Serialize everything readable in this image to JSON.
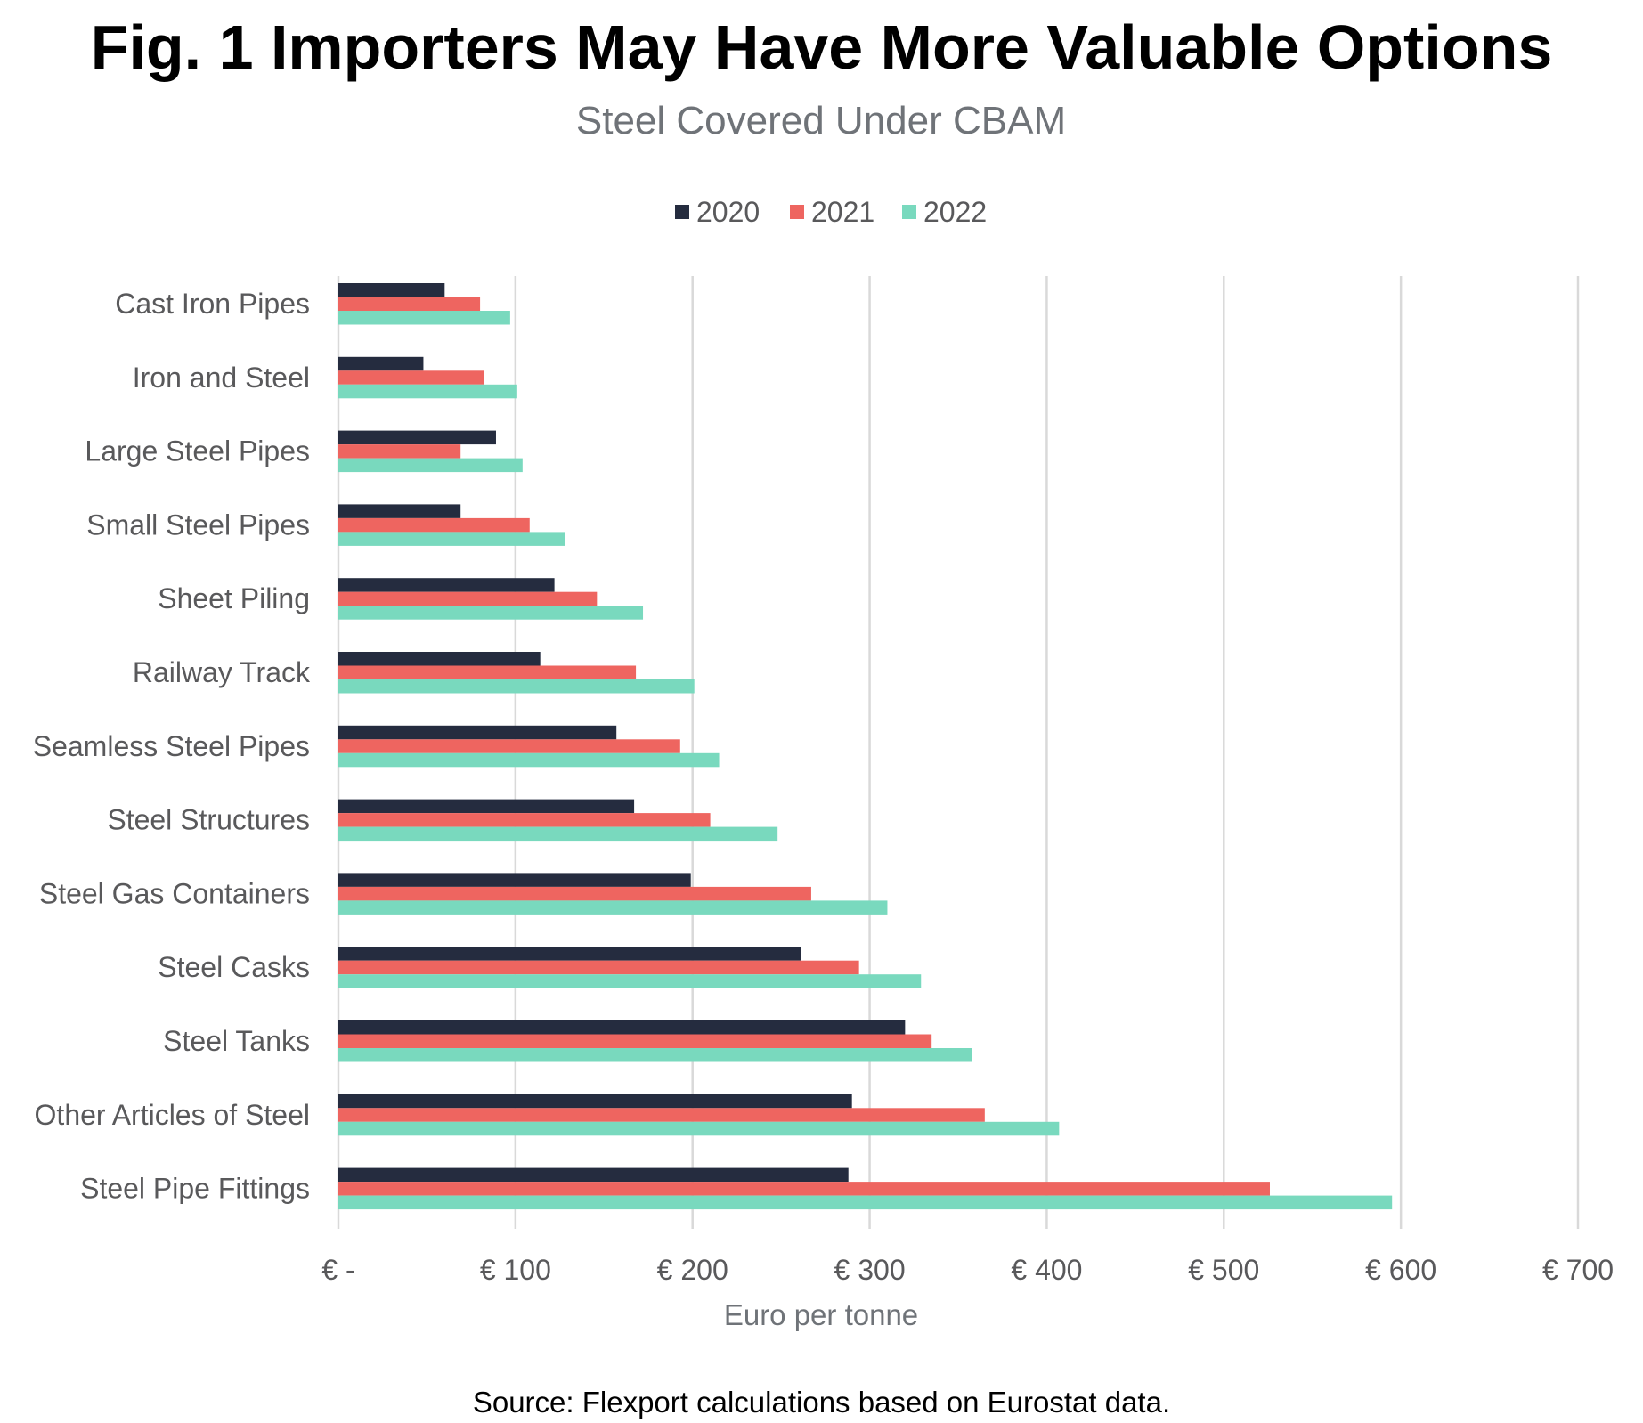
{
  "figure": {
    "title": "Fig. 1 Importers May Have More Valuable Options",
    "source": "Source: Flexport calculations based on Eurostat data."
  },
  "colors": {
    "2020": "#252c3f",
    "2021": "#ee6560",
    "2022": "#79d9be",
    "grid": "#d9d9d9",
    "text": "#59595b",
    "subtitle": "#6f7378"
  },
  "chart_data": {
    "type": "bar",
    "orientation": "horizontal",
    "title": "Steel Covered Under CBAM",
    "xlabel": "Euro per tonne",
    "ylabel": "",
    "xlim": [
      0,
      700
    ],
    "xticks": [
      0,
      100,
      200,
      300,
      400,
      500,
      600,
      700
    ],
    "xtick_labels": [
      "€ -",
      "€ 100",
      "€ 200",
      "€ 300",
      "€ 400",
      "€ 500",
      "€ 600",
      "€ 700"
    ],
    "grid": "vertical",
    "legend_position": "top-center",
    "categories": [
      "Cast Iron Pipes",
      "Iron and Steel",
      "Large Steel Pipes",
      "Small Steel Pipes",
      "Sheet Piling",
      "Railway Track",
      "Seamless Steel Pipes",
      "Steel Structures",
      "Steel Gas Containers",
      "Steel Casks",
      "Steel Tanks",
      "Other Articles of Steel",
      "Steel Pipe Fittings"
    ],
    "series": [
      {
        "name": "2020",
        "values": [
          60,
          48,
          89,
          69,
          122,
          114,
          157,
          167,
          199,
          261,
          320,
          290,
          288
        ]
      },
      {
        "name": "2021",
        "values": [
          80,
          82,
          69,
          108,
          146,
          168,
          193,
          210,
          267,
          294,
          335,
          365,
          526
        ]
      },
      {
        "name": "2022",
        "values": [
          97,
          101,
          104,
          128,
          172,
          201,
          215,
          248,
          310,
          329,
          358,
          407,
          595
        ]
      }
    ]
  }
}
